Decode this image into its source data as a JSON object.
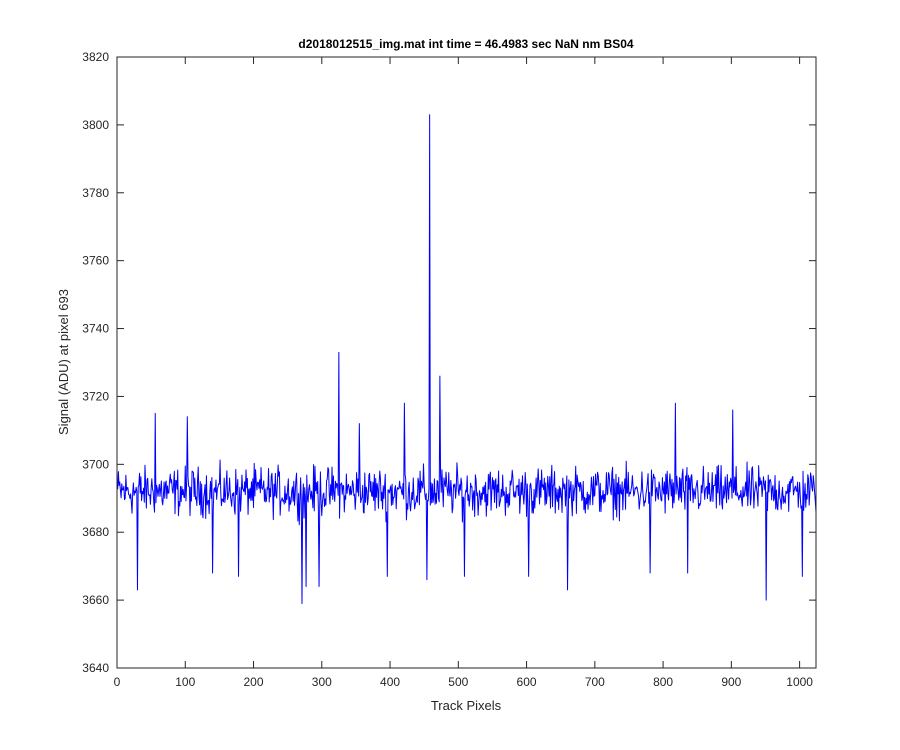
{
  "chart_data": {
    "type": "line",
    "title": "d2018012515_img.mat int time = 46.4983 sec  NaN nm BS04",
    "xlabel": "Track Pixels",
    "ylabel": "Signal (ADU) at pixel 693",
    "xlim": [
      0,
      1024
    ],
    "ylim": [
      3640,
      3820
    ],
    "xticks": [
      0,
      100,
      200,
      300,
      400,
      500,
      600,
      700,
      800,
      900,
      1000
    ],
    "yticks": [
      3640,
      3660,
      3680,
      3700,
      3720,
      3740,
      3760,
      3780,
      3800,
      3820
    ],
    "xtick_labels": [
      "0",
      "100",
      "200",
      "300",
      "400",
      "500",
      "600",
      "700",
      "800",
      "900",
      "1000"
    ],
    "ytick_labels": [
      "3640",
      "3660",
      "3680",
      "3700",
      "3720",
      "3740",
      "3760",
      "3780",
      "3800",
      "3820"
    ],
    "grid": false,
    "series": [
      {
        "color": "#0000ff",
        "baseline": 3690,
        "noise_amplitude": 9,
        "n_points": 1024,
        "x_start": 1,
        "x_step": 1,
        "spikes": [
          {
            "x": 30,
            "y": 3663
          },
          {
            "x": 56,
            "y": 3715
          },
          {
            "x": 103,
            "y": 3714
          },
          {
            "x": 140,
            "y": 3668
          },
          {
            "x": 178,
            "y": 3667
          },
          {
            "x": 271,
            "y": 3659
          },
          {
            "x": 277,
            "y": 3664
          },
          {
            "x": 296,
            "y": 3664
          },
          {
            "x": 325,
            "y": 3733
          },
          {
            "x": 355,
            "y": 3712
          },
          {
            "x": 396,
            "y": 3667
          },
          {
            "x": 421,
            "y": 3718
          },
          {
            "x": 454,
            "y": 3666
          },
          {
            "x": 458,
            "y": 3803
          },
          {
            "x": 473,
            "y": 3726
          },
          {
            "x": 509,
            "y": 3667
          },
          {
            "x": 603,
            "y": 3667
          },
          {
            "x": 660,
            "y": 3663
          },
          {
            "x": 781,
            "y": 3668
          },
          {
            "x": 818,
            "y": 3718
          },
          {
            "x": 836,
            "y": 3668
          },
          {
            "x": 902,
            "y": 3716
          },
          {
            "x": 951,
            "y": 3660
          },
          {
            "x": 1004,
            "y": 3667
          }
        ]
      }
    ]
  }
}
